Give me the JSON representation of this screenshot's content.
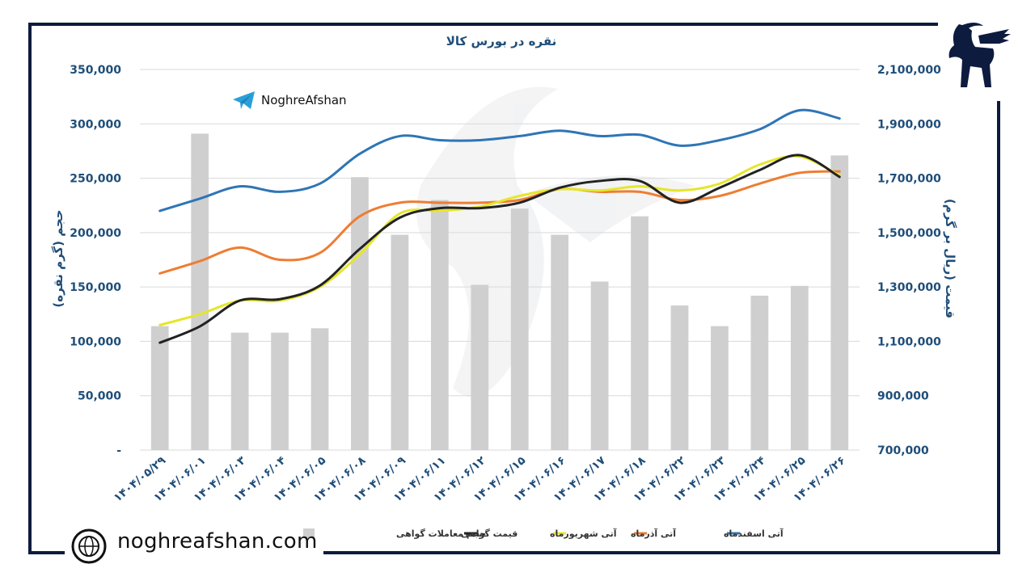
{
  "brand": {
    "telegram_label": "NoghreAfshan",
    "website": "noghreafshan.com"
  },
  "colors": {
    "frame": "#0d1b3e",
    "axis_text": "#1f4e79",
    "bars": "#d0cfd0",
    "black_line": "#222222",
    "yellow_line": "#e6e62a",
    "orange_line": "#ee7d33",
    "blue_line": "#2e75b6"
  },
  "chart_data": {
    "type": "bar",
    "title": "نقره در بورس کالا",
    "ylabel_left": "حجم (گرم نقره)",
    "ylabel_right": "قیمت (ریال بر گرم)",
    "ylim_left": [
      0,
      350000
    ],
    "ylim_right": [
      700000,
      2100000
    ],
    "yticks_left": [
      "-",
      "50,000",
      "100,000",
      "150,000",
      "200,000",
      "250,000",
      "300,000",
      "350,000"
    ],
    "yticks_right": [
      "700,000",
      "900,000",
      "1,100,000",
      "1,300,000",
      "1,500,000",
      "1,700,000",
      "1,900,000",
      "2,100,000"
    ],
    "grid": true,
    "legend_position": "bottom",
    "categories": [
      "۱۴۰۴/۰۵/۲۹",
      "۱۴۰۴/۰۶/۰۱",
      "۱۴۰۴/۰۶/۰۳",
      "۱۴۰۴/۰۶/۰۴",
      "۱۴۰۴/۰۶/۰۵",
      "۱۴۰۴/۰۶/۰۸",
      "۱۴۰۴/۰۶/۰۹",
      "۱۴۰۴/۰۶/۱۱",
      "۱۴۰۴/۰۶/۱۲",
      "۱۴۰۴/۰۶/۱۵",
      "۱۴۰۴/۰۶/۱۶",
      "۱۴۰۴/۰۶/۱۷",
      "۱۴۰۴/۰۶/۱۸",
      "۱۴۰۴/۰۶/۲۲",
      "۱۴۰۴/۰۶/۲۳",
      "۱۴۰۴/۰۶/۲۴",
      "۱۴۰۴/۰۶/۲۵",
      "۱۴۰۴/۰۶/۲۶"
    ],
    "bars": {
      "name": "حجم معاملات گواهی",
      "axis": "left",
      "values": [
        114000,
        291000,
        108000,
        108000,
        112000,
        251000,
        198000,
        230000,
        152000,
        222000,
        198000,
        155000,
        215000,
        133000,
        114000,
        142000,
        151000,
        271000
      ]
    },
    "series": [
      {
        "name": "قیمت گواهی",
        "axis": "right",
        "color": "#222222",
        "values": [
          1095000,
          1155000,
          1250000,
          1255000,
          1305000,
          1440000,
          1555000,
          1590000,
          1590000,
          1610000,
          1665000,
          1690000,
          1690000,
          1610000,
          1665000,
          1730000,
          1785000,
          1705000
        ]
      },
      {
        "name": "آتی شهریورماه",
        "axis": "right",
        "color": "#e6e62a",
        "values": [
          1160000,
          1200000,
          1250000,
          1250000,
          1300000,
          1420000,
          1570000,
          1580000,
          1595000,
          1635000,
          1660000,
          1655000,
          1670000,
          1655000,
          1680000,
          1750000,
          1780000,
          1710000
        ]
      },
      {
        "name": "آتی آذرماه",
        "axis": "right",
        "color": "#ee7d33",
        "values": [
          1350000,
          1395000,
          1445000,
          1400000,
          1425000,
          1560000,
          1610000,
          1610000,
          1610000,
          1620000,
          1660000,
          1650000,
          1650000,
          1620000,
          1635000,
          1680000,
          1720000,
          1725000
        ]
      },
      {
        "name": "آتی اسفندماه",
        "axis": "right",
        "color": "#2e75b6",
        "values": [
          1580000,
          1625000,
          1670000,
          1650000,
          1680000,
          1790000,
          1855000,
          1840000,
          1840000,
          1855000,
          1875000,
          1855000,
          1860000,
          1820000,
          1840000,
          1880000,
          1950000,
          1920000
        ]
      }
    ]
  }
}
